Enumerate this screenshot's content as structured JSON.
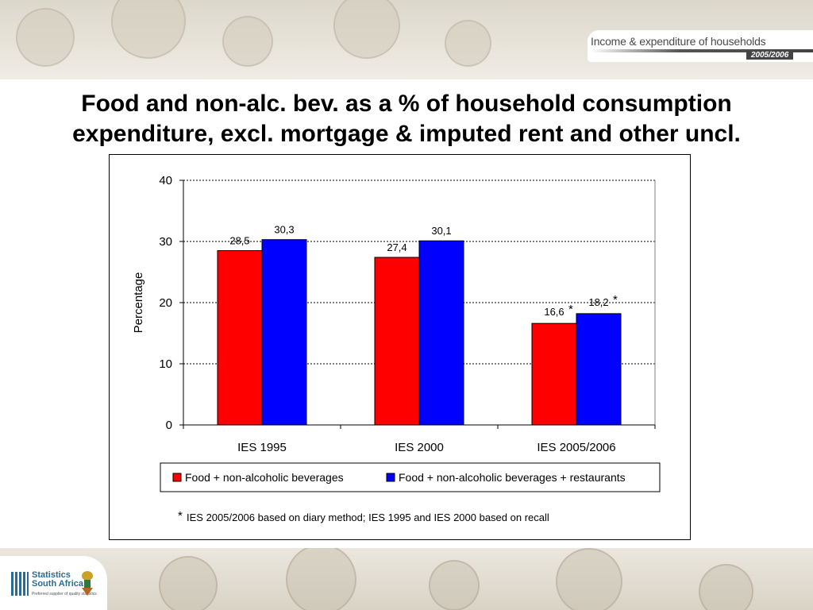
{
  "header": {
    "publication": "Income & expenditure of households",
    "period": "2005/2006"
  },
  "slide": {
    "title_line1": "Food and non-alc. bev. as a % of household consumption",
    "title_line2": "expenditure, excl. mortgage & imputed rent and other uncl."
  },
  "chart_data": {
    "type": "bar",
    "categories": [
      "IES 1995",
      "IES 2000",
      "IES 2005/2006"
    ],
    "series": [
      {
        "name": "Food + non-alcoholic beverages",
        "values": [
          28.5,
          27.4,
          16.6
        ],
        "labels": [
          "28,5",
          "27,4",
          "16,6"
        ],
        "color": "#ff0000"
      },
      {
        "name": "Food + non-alcoholic beverages + restaurants",
        "values": [
          30.3,
          30.1,
          18.2
        ],
        "labels": [
          "30,3",
          "30,1",
          "18,2"
        ],
        "color": "#0000ff"
      }
    ],
    "ylabel": "Percentage",
    "ylim": [
      0,
      40
    ],
    "yticks": [
      0,
      10,
      20,
      30,
      40
    ],
    "grid": "horizontal dotted",
    "legend_position": "bottom",
    "annotation_marker": "*",
    "annotated_category": "IES 2005/2006",
    "footnote_marker": "*",
    "footnote_text": "IES 2005/2006 based on diary method; IES 1995 and IES 2000 based on recall"
  },
  "footer": {
    "logo_name_line1": "Statistics",
    "logo_name_line2": "South Africa",
    "logo_tagline": "Preferred supplier of quality statistics"
  }
}
